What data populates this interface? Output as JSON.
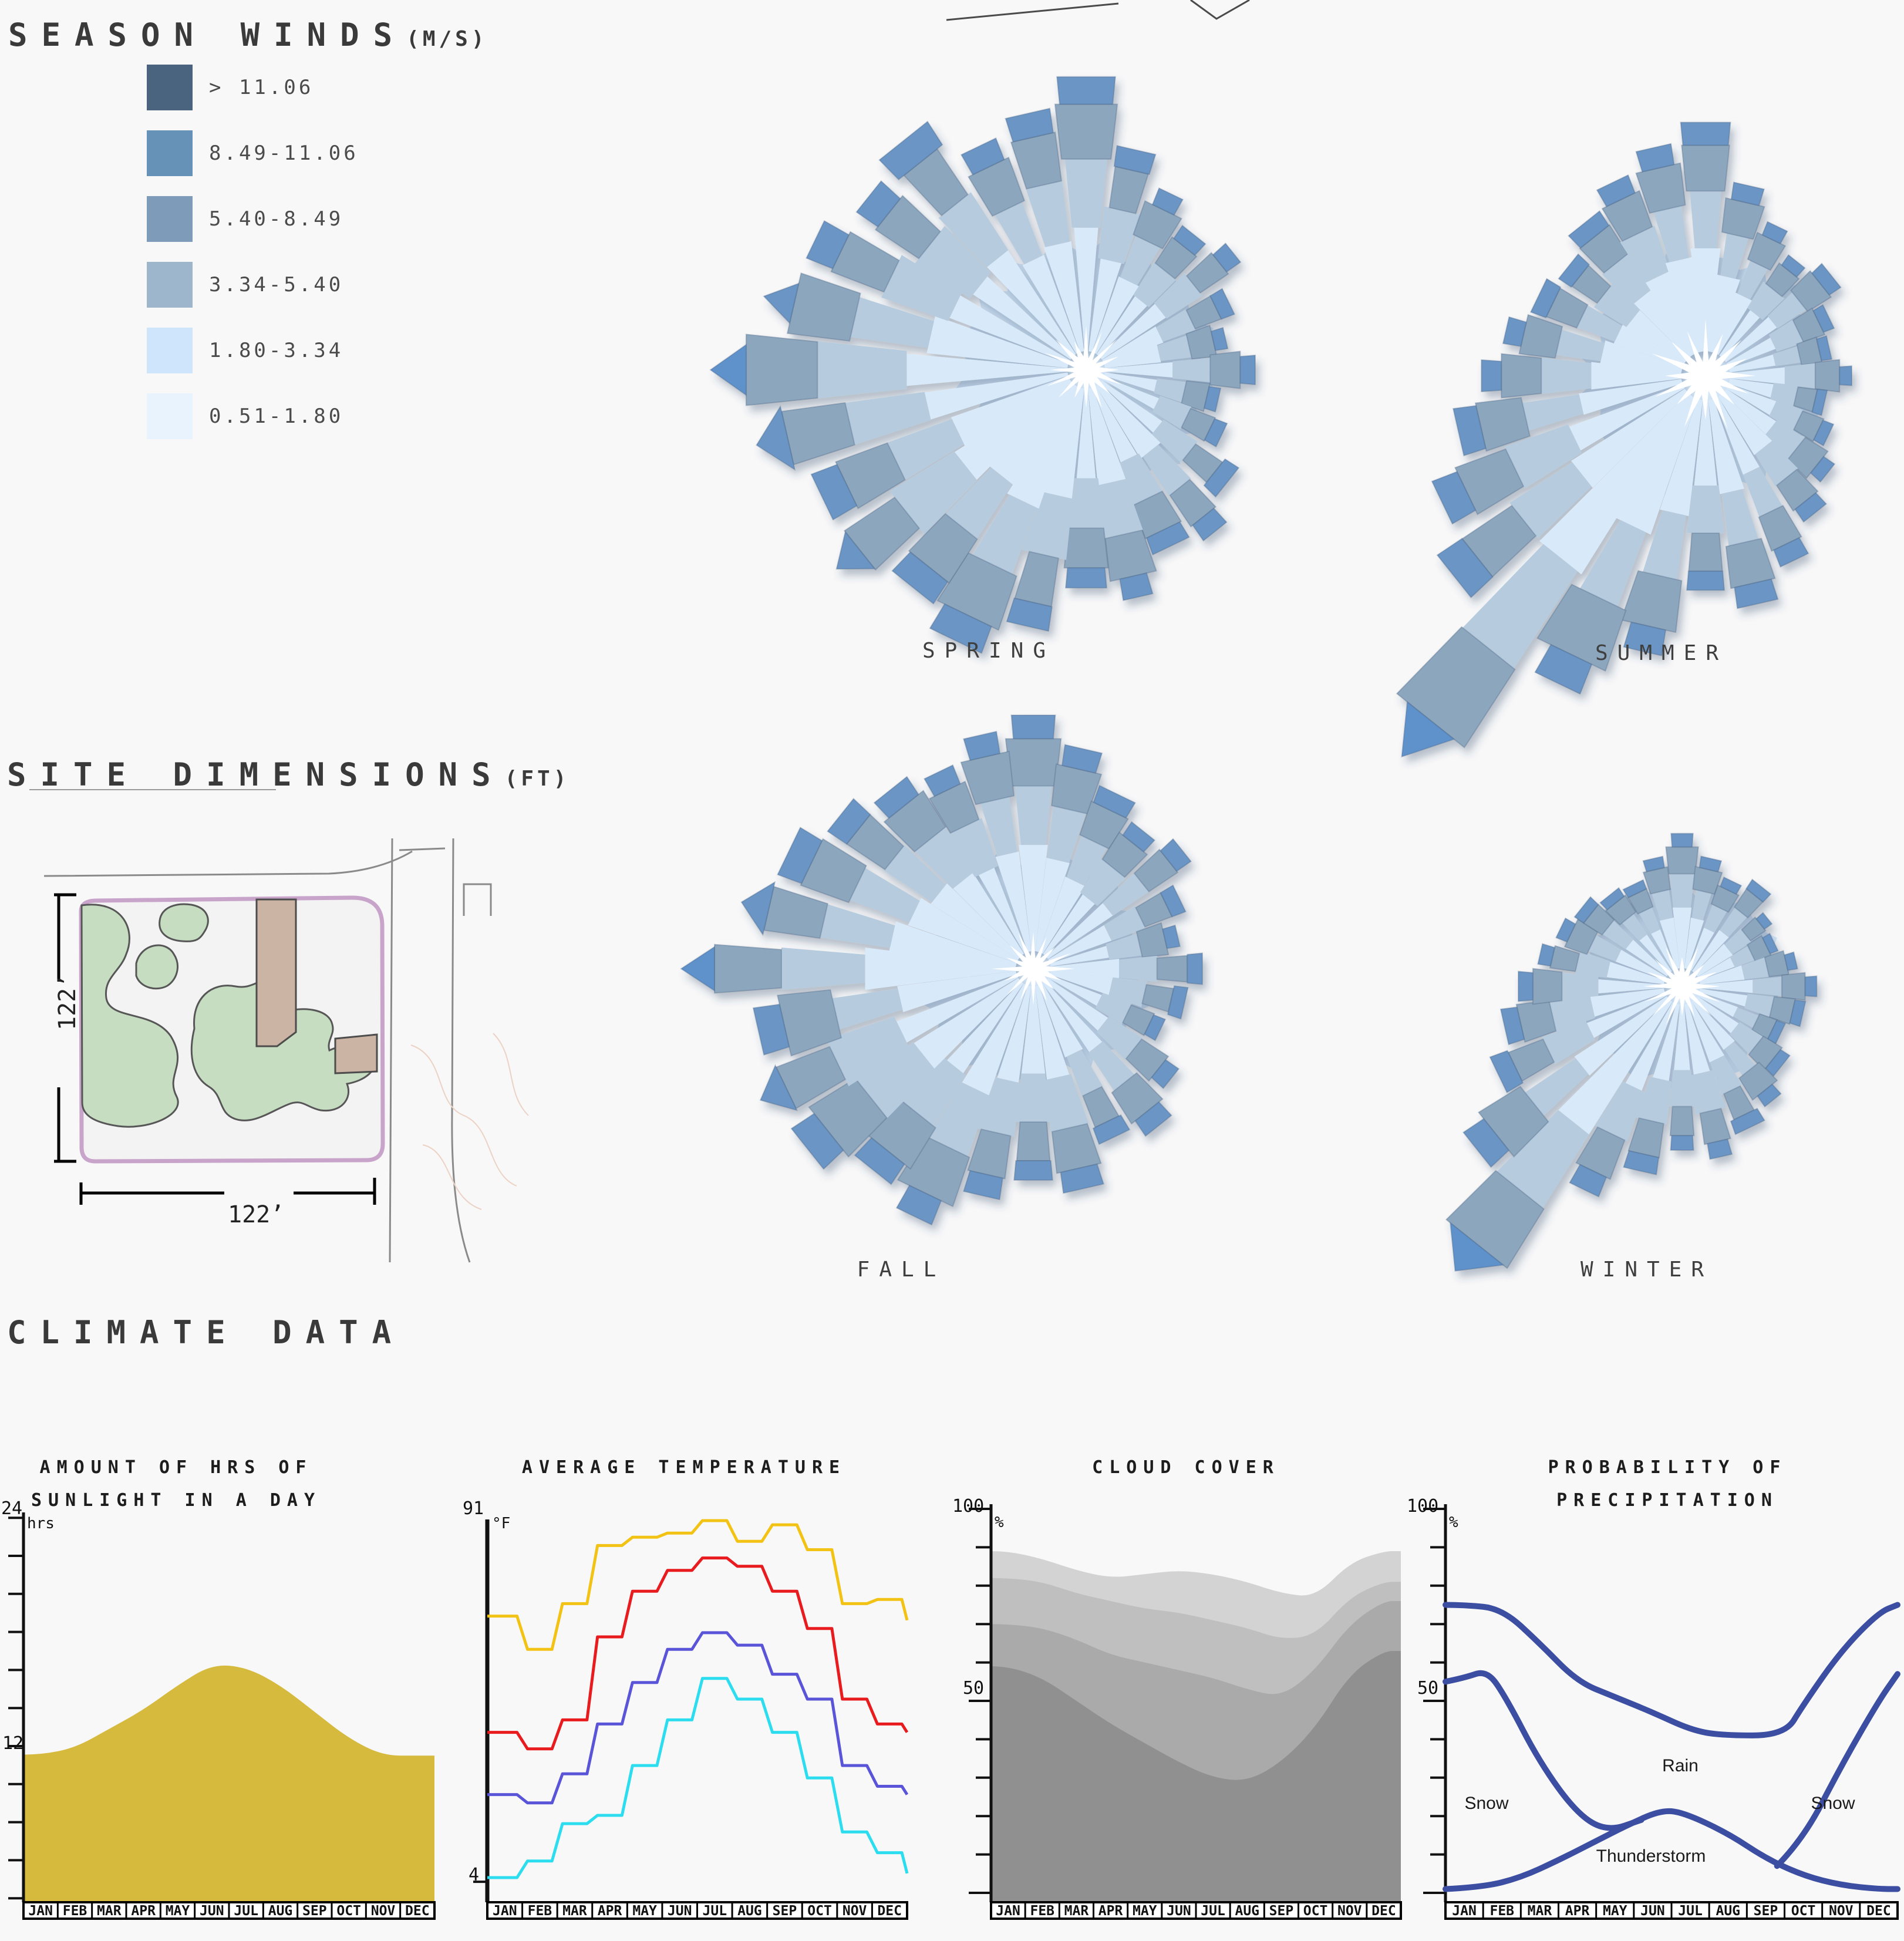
{
  "months": [
    "JAN",
    "FEB",
    "MAR",
    "APR",
    "MAY",
    "JUN",
    "JUL",
    "AUG",
    "SEP",
    "OCT",
    "NOV",
    "DEC"
  ],
  "wind_legend": {
    "title": "SEASON WINDS",
    "title_unit": "(M/S)",
    "bins": [
      {
        "label": "> 11.06",
        "color": "#4a6480"
      },
      {
        "label": "8.49-11.06",
        "color": "#6692b8"
      },
      {
        "label": "5.40-8.49",
        "color": "#7e9cba"
      },
      {
        "label": "3.34-5.40",
        "color": "#9eb6cc"
      },
      {
        "label": "1.80-3.34",
        "color": "#cfe5fb"
      },
      {
        "label": "0.51-1.80",
        "color": "#e9f3fd"
      }
    ]
  },
  "site": {
    "title": "SITE DIMENSIONS",
    "title_unit": "(FT)",
    "dim_width": "122’",
    "dim_height": "122’",
    "colors": {
      "boundary": "#c8a4ca",
      "ground": "#f3f3f4",
      "green": "#c6ddc2",
      "building": "#ccb4a5",
      "outline": "#565656",
      "road": "#8a8a8a",
      "contour": "#ecd2c4"
    }
  },
  "climate_title": "CLIMATE DATA",
  "chart_data": [
    {
      "id": "sunlight",
      "type": "area",
      "title_lines": [
        "AMOUNT OF HRS OF",
        "SUNLIGHT IN A DAY"
      ],
      "unit": "hrs",
      "y_top_label": "24",
      "y_mid_label": "12",
      "ylim": [
        3.4,
        24
      ],
      "grid": false,
      "color": "#d6ba3e",
      "categories": [
        "JAN",
        "FEB",
        "MAR",
        "APR",
        "MAY",
        "JUN",
        "JUL",
        "AUG",
        "SEP",
        "OCT",
        "NOV",
        "DEC"
      ],
      "values": [
        11.55,
        11.9,
        12.9,
        13.9,
        15.2,
        16.3,
        16.15,
        15.2,
        13.8,
        12.4,
        11.5,
        11.5
      ]
    },
    {
      "id": "temperature",
      "type": "line",
      "title_lines": [
        "AVERAGE TEMPERATURE"
      ],
      "unit": "°F",
      "y_top_label": "91",
      "y_bottom_label": "4",
      "ylim": [
        4,
        91
      ],
      "grid": false,
      "categories": [
        "JAN",
        "FEB",
        "MAR",
        "APR",
        "MAY",
        "JUN",
        "JUL",
        "AUG",
        "SEP",
        "OCT",
        "NOV",
        "DEC"
      ],
      "series": [
        {
          "name": "record-high",
          "color": "#f2c214",
          "values": [
            68,
            60,
            71,
            85,
            87,
            88,
            91,
            86,
            90,
            84,
            71,
            72
          ],
          "end": 67
        },
        {
          "name": "average-high",
          "color": "#e81b1e",
          "values": [
            40,
            36,
            43,
            63,
            74,
            79,
            82,
            80,
            74,
            65,
            48,
            42
          ],
          "end": 40
        },
        {
          "name": "average-low",
          "color": "#5a55d8",
          "values": [
            25,
            23,
            30,
            42,
            52,
            60,
            64,
            61,
            54,
            48,
            32,
            27
          ],
          "end": 25
        },
        {
          "name": "record-low",
          "color": "#2bddee",
          "values": [
            5,
            9,
            18,
            20,
            32,
            43,
            53,
            48,
            40,
            29,
            16,
            11
          ],
          "end": 6
        }
      ]
    },
    {
      "id": "cloud_cover",
      "type": "stacked-area",
      "title_lines": [
        "CLOUD COVER"
      ],
      "unit": "%",
      "y_top_label": "100",
      "y_mid_label": "50",
      "ylim": [
        0,
        100
      ],
      "grid": false,
      "categories": [
        "JAN",
        "FEB",
        "MAR",
        "APR",
        "MAY",
        "JUN",
        "JUL",
        "AUG",
        "SEP",
        "OCT",
        "NOV",
        "DEC"
      ],
      "layers": [
        {
          "name": "overcast-top",
          "color": "#d3d3d3",
          "values": [
            89,
            87,
            84,
            82,
            83,
            84,
            83,
            81,
            78,
            77,
            86,
            89
          ]
        },
        {
          "name": "mostly-cloudy",
          "color": "#bfbfbf",
          "values": [
            82,
            81,
            78,
            76,
            74,
            73,
            71,
            69,
            66,
            67,
            77,
            81
          ]
        },
        {
          "name": "partly-cloudy",
          "color": "#aaaaaa",
          "values": [
            70,
            69,
            66,
            62,
            60,
            58,
            56,
            53,
            51,
            58,
            70,
            76
          ]
        },
        {
          "name": "cloudy-base",
          "color": "#909090",
          "values": [
            59,
            56,
            50,
            44,
            39,
            34,
            30,
            29,
            34,
            43,
            57,
            63
          ]
        }
      ]
    },
    {
      "id": "precipitation",
      "type": "line",
      "title_lines": [
        "PROBABILITY OF",
        "PRECIPITATION"
      ],
      "unit": "%",
      "y_top_label": "100",
      "y_mid_label": "50",
      "ylim": [
        0,
        100
      ],
      "grid": false,
      "line_color": "#3c4ea2",
      "categories": [
        "JAN",
        "FEB",
        "MAR",
        "APR",
        "MAY",
        "JUN",
        "JUL",
        "AUG",
        "SEP",
        "OCT",
        "NOV",
        "DEC"
      ],
      "series": [
        {
          "name": "rain-total",
          "x": [
            0,
            0.5,
            1.5,
            2.5,
            3.5,
            4.5,
            5.5,
            6.5,
            7.3,
            9.0,
            9.5,
            10.5,
            11.5,
            12
          ],
          "y": [
            75,
            75,
            74,
            65,
            55,
            51,
            47,
            42.5,
            41,
            41,
            49,
            63,
            73,
            75
          ]
        },
        {
          "name": "snow-early",
          "x": [
            0,
            0.5,
            1.1,
            1.6,
            2.5,
            3.5,
            4.3,
            5.2
          ],
          "y": [
            55,
            56,
            58,
            51,
            34,
            20.5,
            16,
            19
          ]
        },
        {
          "name": "snow-late",
          "x": [
            8.8,
            9.5,
            10.5,
            11.5,
            12
          ],
          "y": [
            7,
            14,
            33,
            50,
            57
          ]
        },
        {
          "name": "thunderstorm",
          "x": [
            0,
            1,
            2,
            3,
            4,
            4.8,
            5.7,
            6.3,
            7.5,
            8.5,
            9.5,
            10.5,
            11.5,
            12
          ],
          "y": [
            1,
            1.5,
            4,
            8.5,
            13.5,
            17.5,
            21.5,
            21,
            15.5,
            9,
            4.5,
            2,
            1,
            1
          ]
        }
      ],
      "region_labels": [
        {
          "text": "Snow",
          "x": 2532,
          "y": 3072
        },
        {
          "text": "Rain",
          "x": 2862,
          "y": 3008
        },
        {
          "text": "Thunderstorm",
          "x": 2812,
          "y": 3162
        },
        {
          "text": "Snow",
          "x": 3122,
          "y": 3072
        }
      ]
    },
    {
      "id": "wind_roses",
      "type": "radial-bar",
      "bin_colors": [
        "#d8e9f9",
        "#b6cbdd",
        "#8ca6be",
        "#6a95c4"
      ],
      "spike_tip_color": "#5e91cb",
      "disc_color": "#d3e5f7",
      "segment_fractions": [
        0.45,
        0.25,
        0.2,
        0.1
      ],
      "seasons": [
        {
          "label": "SPRING",
          "cx": 1850,
          "cy": 630,
          "max_r": 640,
          "disc_r": 210,
          "label_x": 1684,
          "label_y": 1088,
          "petals": [
            0.78,
            0.6,
            0.52,
            0.46,
            0.5,
            0.42,
            0.38,
            0.45,
            0.36,
            0.4,
            0.48,
            0.55,
            0.52,
            0.62,
            0.58,
            0.7,
            0.8,
            0.74,
            0.85,
            0.78,
            0.9,
            1.0,
            0.88,
            0.8,
            0.74,
            0.78,
            0.66,
            0.7
          ]
        },
        {
          "label": "SUMMER",
          "cx": 2905,
          "cy": 640,
          "max_r": 830,
          "disc_r": 200,
          "label_x": 2830,
          "label_y": 1092,
          "petals": [
            0.52,
            0.4,
            0.34,
            0.3,
            0.33,
            0.28,
            0.26,
            0.3,
            0.25,
            0.28,
            0.32,
            0.36,
            0.42,
            0.48,
            0.44,
            0.58,
            0.7,
            1.0,
            0.66,
            0.6,
            0.52,
            0.46,
            0.42,
            0.38,
            0.36,
            0.4,
            0.44,
            0.48
          ]
        },
        {
          "label": "FALL",
          "cx": 1760,
          "cy": 1650,
          "max_r": 600,
          "disc_r": 190,
          "label_x": 1535,
          "label_y": 2142,
          "petals": [
            0.72,
            0.64,
            0.55,
            0.5,
            0.54,
            0.46,
            0.42,
            0.48,
            0.44,
            0.4,
            0.5,
            0.57,
            0.53,
            0.64,
            0.6,
            0.66,
            0.78,
            0.73,
            0.82,
            0.86,
            0.8,
            1.0,
            0.85,
            0.77,
            0.7,
            0.65,
            0.62,
            0.68
          ]
        },
        {
          "label": "WINTER",
          "cx": 2865,
          "cy": 1680,
          "max_r": 620,
          "disc_r": 170,
          "label_x": 2805,
          "label_y": 2142,
          "petals": [
            0.42,
            0.36,
            0.32,
            0.35,
            0.3,
            0.28,
            0.32,
            0.37,
            0.34,
            0.3,
            0.35,
            0.4,
            0.43,
            0.48,
            0.45,
            0.52,
            0.62,
            1.0,
            0.72,
            0.56,
            0.5,
            0.45,
            0.4,
            0.37,
            0.35,
            0.32,
            0.31,
            0.36
          ]
        }
      ]
    }
  ]
}
